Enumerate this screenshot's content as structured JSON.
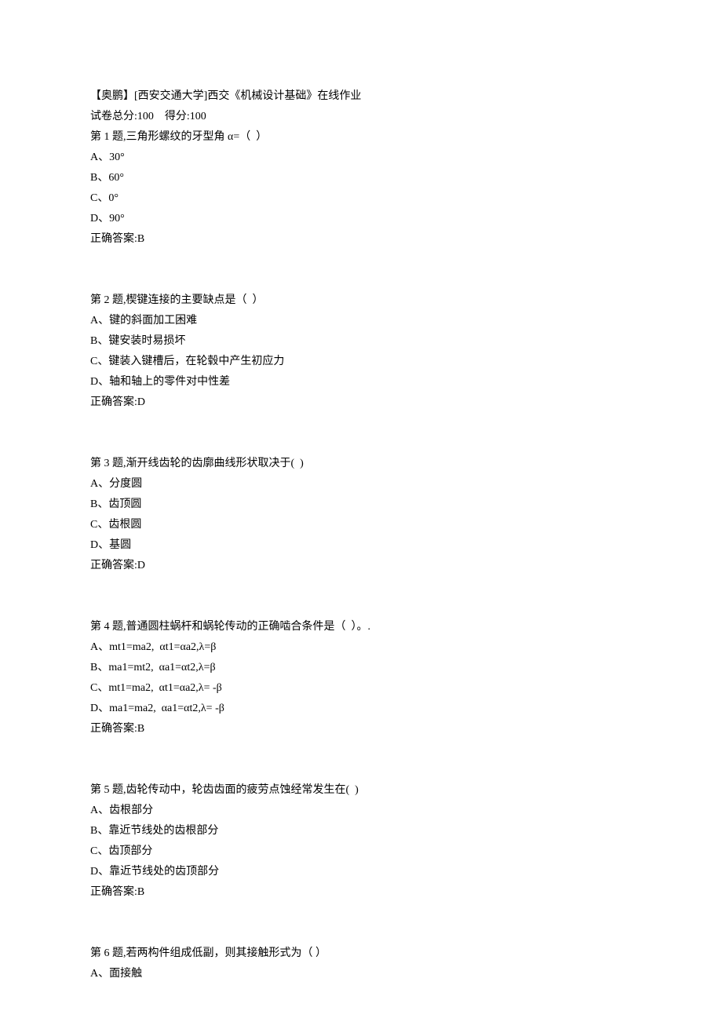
{
  "header": {
    "title": "【奥鹏】[西安交通大学]西交《机械设计基础》在线作业",
    "total_score_label": "试卷总分:100",
    "score_gap": "    ",
    "score_label": "得分:100"
  },
  "questions": [
    {
      "title": "第 1 题,三角形螺纹的牙型角 α=（  ）",
      "options": [
        "A、30°",
        "B、60°",
        "C、0°",
        "D、90°"
      ],
      "answer": "正确答案:B"
    },
    {
      "title": "第 2 题,楔键连接的主要缺点是（  ）",
      "options": [
        "A、键的斜面加工困难",
        "B、键安装时易损坏",
        "C、键装入键槽后，在轮毂中产生初应力",
        "D、轴和轴上的零件对中性差"
      ],
      "answer": "正确答案:D"
    },
    {
      "title": "第 3 题,渐开线齿轮的齿廓曲线形状取决于(  )",
      "options": [
        "A、分度圆",
        "B、齿顶圆",
        "C、齿根圆",
        "D、基圆"
      ],
      "answer": "正确答案:D"
    },
    {
      "title": "第 4 题,普通圆柱蜗杆和蜗轮传动的正确啮合条件是（  ）。.",
      "options": [
        "A、mt1=ma2,  αt1=αa2,λ=β",
        "B、ma1=mt2,  αa1=αt2,λ=β",
        "C、mt1=ma2,  αt1=αa2,λ= -β",
        "D、ma1=ma2,  αa1=αt2,λ= -β"
      ],
      "answer": "正确答案:B"
    },
    {
      "title": "第 5 题,齿轮传动中，轮齿齿面的疲劳点蚀经常发生在(  )",
      "options": [
        "A、齿根部分",
        "B、靠近节线处的齿根部分",
        "C、齿顶部分",
        "D、靠近节线处的齿顶部分"
      ],
      "answer": "正确答案:B"
    },
    {
      "title": "第 6 题,若两构件组成低副，则其接触形式为（ ）",
      "options": [
        "A、面接触"
      ],
      "answer": ""
    }
  ]
}
